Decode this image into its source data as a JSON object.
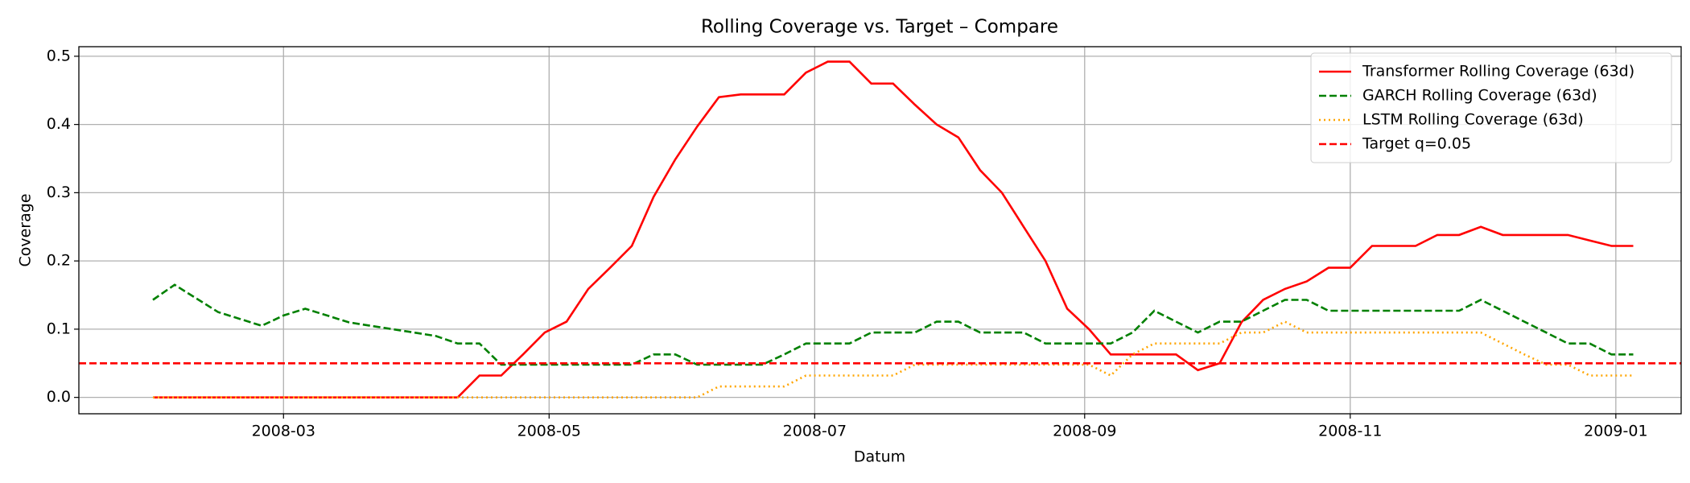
{
  "chart_data": {
    "type": "line",
    "title": "Rolling Coverage vs. Target – Compare",
    "x_label": "Datum",
    "y_label": "Coverage",
    "x": [
      "2008-01-31",
      "2008-02-05",
      "2008-02-10",
      "2008-02-15",
      "2008-02-20",
      "2008-02-25",
      "2008-03-01",
      "2008-03-06",
      "2008-03-11",
      "2008-03-16",
      "2008-03-21",
      "2008-03-26",
      "2008-03-31",
      "2008-04-05",
      "2008-04-10",
      "2008-04-15",
      "2008-04-20",
      "2008-04-25",
      "2008-04-30",
      "2008-05-05",
      "2008-05-10",
      "2008-05-15",
      "2008-05-20",
      "2008-05-25",
      "2008-05-30",
      "2008-06-04",
      "2008-06-09",
      "2008-06-14",
      "2008-06-19",
      "2008-06-24",
      "2008-06-29",
      "2008-07-04",
      "2008-07-09",
      "2008-07-14",
      "2008-07-19",
      "2008-07-24",
      "2008-07-29",
      "2008-08-03",
      "2008-08-08",
      "2008-08-13",
      "2008-08-18",
      "2008-08-23",
      "2008-08-28",
      "2008-09-02",
      "2008-09-07",
      "2008-09-12",
      "2008-09-17",
      "2008-09-22",
      "2008-09-27",
      "2008-10-02",
      "2008-10-07",
      "2008-10-12",
      "2008-10-17",
      "2008-10-22",
      "2008-10-27",
      "2008-11-01",
      "2008-11-06",
      "2008-11-11",
      "2008-11-16",
      "2008-11-21",
      "2008-11-26",
      "2008-12-01",
      "2008-12-06",
      "2008-12-11",
      "2008-12-16",
      "2008-12-21",
      "2008-12-26",
      "2008-12-31",
      "2009-01-05"
    ],
    "series": [
      {
        "name": "Transformer Rolling Coverage (63d)",
        "color": "#ff0000",
        "style": "solid",
        "values": [
          0,
          0,
          0,
          0,
          0,
          0,
          0,
          0,
          0,
          0,
          0,
          0,
          0,
          0,
          0,
          0.032,
          0.032,
          0.063,
          0.095,
          0.111,
          0.159,
          0.19,
          0.222,
          0.294,
          0.349,
          0.397,
          0.44,
          0.444,
          0.444,
          0.444,
          0.476,
          0.492,
          0.492,
          0.46,
          0.46,
          0.429,
          0.4,
          0.381,
          0.333,
          0.3,
          0.25,
          0.2,
          0.13,
          0.1,
          0.063,
          0.063,
          0.063,
          0.063,
          0.04,
          0.05,
          0.11,
          0.143,
          0.159,
          0.17,
          0.19,
          0.19,
          0.222,
          0.222,
          0.222,
          0.238,
          0.238,
          0.25,
          0.238,
          0.238,
          0.238,
          0.238,
          0.23,
          0.222,
          0.222
        ]
      },
      {
        "name": "GARCH Rolling Coverage (63d)",
        "color": "#008000",
        "style": "dashed",
        "values": [
          0.143,
          0.165,
          0.145,
          0.125,
          0.115,
          0.105,
          0.12,
          0.13,
          0.12,
          0.11,
          0.105,
          0.1,
          0.095,
          0.09,
          0.079,
          0.079,
          0.048,
          0.048,
          0.048,
          0.048,
          0.048,
          0.048,
          0.048,
          0.063,
          0.063,
          0.048,
          0.048,
          0.048,
          0.048,
          0.063,
          0.079,
          0.079,
          0.079,
          0.095,
          0.095,
          0.095,
          0.111,
          0.111,
          0.095,
          0.095,
          0.095,
          0.079,
          0.079,
          0.079,
          0.079,
          0.095,
          0.127,
          0.111,
          0.095,
          0.111,
          0.111,
          0.127,
          0.143,
          0.143,
          0.127,
          0.127,
          0.127,
          0.127,
          0.127,
          0.127,
          0.127,
          0.143,
          0.127,
          0.111,
          0.095,
          0.079,
          0.079,
          0.063,
          0.063
        ]
      },
      {
        "name": "LSTM Rolling Coverage (63d)",
        "color": "#ffa500",
        "style": "dotted",
        "values": [
          0,
          0,
          0,
          0,
          0,
          0,
          0,
          0,
          0,
          0,
          0,
          0,
          0,
          0,
          0,
          0,
          0,
          0,
          0,
          0,
          0,
          0,
          0,
          0,
          0,
          0,
          0.016,
          0.016,
          0.016,
          0.016,
          0.032,
          0.032,
          0.032,
          0.032,
          0.032,
          0.048,
          0.048,
          0.048,
          0.048,
          0.048,
          0.048,
          0.048,
          0.048,
          0.048,
          0.032,
          0.063,
          0.079,
          0.079,
          0.079,
          0.079,
          0.095,
          0.095,
          0.111,
          0.095,
          0.095,
          0.095,
          0.095,
          0.095,
          0.095,
          0.095,
          0.095,
          0.095,
          0.079,
          0.063,
          0.048,
          0.048,
          0.032,
          0.032,
          0.032
        ]
      }
    ],
    "hlines": [
      {
        "name": "Target q=0.05",
        "value": 0.05,
        "color": "#ff0000",
        "style": "dashed"
      }
    ],
    "xlim": [
      "2008-01-14",
      "2009-01-16"
    ],
    "xticks": [
      {
        "value": "2008-03-01",
        "label": "2008-03"
      },
      {
        "value": "2008-05-01",
        "label": "2008-05"
      },
      {
        "value": "2008-07-01",
        "label": "2008-07"
      },
      {
        "value": "2008-09-01",
        "label": "2008-09"
      },
      {
        "value": "2008-11-01",
        "label": "2008-11"
      },
      {
        "value": "2009-01-01",
        "label": "2009-01"
      }
    ],
    "ylim": [
      -0.024,
      0.514
    ],
    "yticks": [
      {
        "value": 0,
        "label": "0.0"
      },
      0.1,
      0.2,
      0.3,
      0.4,
      0.5
    ],
    "grid": true,
    "legend": "upper right"
  }
}
